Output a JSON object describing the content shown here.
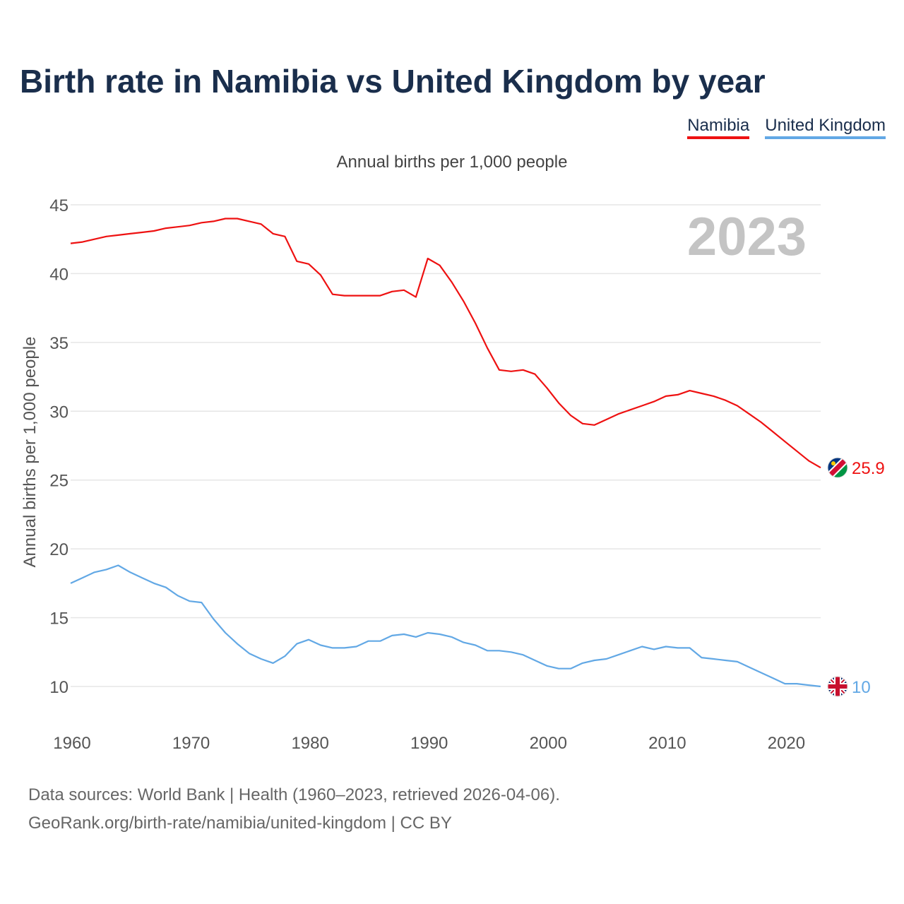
{
  "title": "Birth rate in Namibia vs United Kingdom by year",
  "legend": [
    {
      "name": "Namibia",
      "color": "#ee1111"
    },
    {
      "name": "United Kingdom",
      "color": "#62a8e5"
    }
  ],
  "subtitle": "Annual births per 1,000 people",
  "year_label": "2023",
  "footer": {
    "line1": "Data sources: World Bank | Health (1960–2023, retrieved 2026-04-06).",
    "line2": "GeoRank.org/birth-rate/namibia/united-kingdom | CC BY"
  },
  "chart_data": {
    "type": "line",
    "title": "Birth rate in Namibia vs United Kingdom by year",
    "xlabel": "",
    "ylabel": "Annual births per 1,000 people",
    "xlim": [
      1960,
      2023
    ],
    "ylim": [
      8,
      45
    ],
    "xticks": [
      1960,
      1970,
      1980,
      1990,
      2000,
      2010,
      2020
    ],
    "yticks": [
      10,
      15,
      20,
      25,
      30,
      35,
      40,
      45
    ],
    "grid": true,
    "x": [
      1960,
      1961,
      1962,
      1963,
      1964,
      1965,
      1966,
      1967,
      1968,
      1969,
      1970,
      1971,
      1972,
      1973,
      1974,
      1975,
      1976,
      1977,
      1978,
      1979,
      1980,
      1981,
      1982,
      1983,
      1984,
      1985,
      1986,
      1987,
      1988,
      1989,
      1990,
      1991,
      1992,
      1993,
      1994,
      1995,
      1996,
      1997,
      1998,
      1999,
      2000,
      2001,
      2002,
      2003,
      2004,
      2005,
      2006,
      2007,
      2008,
      2009,
      2010,
      2011,
      2012,
      2013,
      2014,
      2015,
      2016,
      2017,
      2018,
      2019,
      2020,
      2021,
      2022,
      2023
    ],
    "series": [
      {
        "name": "Namibia",
        "color": "#ee1111",
        "end_label": "25.9",
        "values": [
          42.2,
          42.3,
          42.5,
          42.7,
          42.8,
          42.9,
          43.0,
          43.1,
          43.3,
          43.4,
          43.5,
          43.7,
          43.8,
          44.0,
          44.0,
          43.8,
          43.6,
          42.9,
          42.7,
          40.9,
          40.7,
          39.9,
          38.5,
          38.4,
          38.4,
          38.4,
          38.4,
          38.7,
          38.8,
          38.3,
          41.1,
          40.6,
          39.4,
          38.0,
          36.4,
          34.6,
          33.0,
          32.9,
          33.0,
          32.7,
          31.7,
          30.6,
          29.7,
          29.1,
          29.0,
          29.4,
          29.8,
          30.1,
          30.4,
          30.7,
          31.1,
          31.2,
          31.5,
          31.3,
          31.1,
          30.8,
          30.4,
          29.8,
          29.2,
          28.5,
          27.8,
          27.1,
          26.4,
          25.9
        ]
      },
      {
        "name": "United Kingdom",
        "color": "#62a8e5",
        "end_label": "10",
        "values": [
          17.5,
          17.9,
          18.3,
          18.5,
          18.8,
          18.3,
          17.9,
          17.5,
          17.2,
          16.6,
          16.2,
          16.1,
          14.9,
          13.9,
          13.1,
          12.4,
          12.0,
          11.7,
          12.2,
          13.1,
          13.4,
          13.0,
          12.8,
          12.8,
          12.9,
          13.3,
          13.3,
          13.7,
          13.8,
          13.6,
          13.9,
          13.8,
          13.6,
          13.2,
          13.0,
          12.6,
          12.6,
          12.5,
          12.3,
          11.9,
          11.5,
          11.3,
          11.3,
          11.7,
          11.9,
          12.0,
          12.3,
          12.6,
          12.9,
          12.7,
          12.9,
          12.8,
          12.8,
          12.1,
          12.0,
          11.9,
          11.8,
          11.4,
          11.0,
          10.6,
          10.2,
          10.2,
          10.1,
          10.0
        ]
      }
    ]
  }
}
